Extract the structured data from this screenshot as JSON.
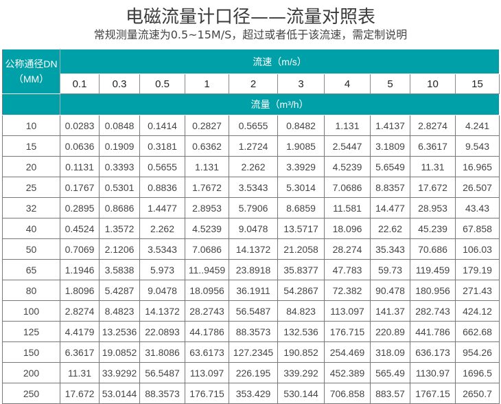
{
  "title": "电磁流量计口径——流量对照表",
  "subtitle": "常规测量流速为0.5~15M/S，超过或者低于该流速，需定制说明",
  "colors": {
    "header_bg": "#00a0a8",
    "header_text": "#ffffff",
    "border": "#777777"
  },
  "table": {
    "dn_header_line1": "公称通径DN",
    "dn_header_line2": "（MM）",
    "velocity_header": "流速（m/s）",
    "flow_header": "流量（m³/h）",
    "velocities": [
      "0.1",
      "0.3",
      "0.5",
      "1",
      "2",
      "3",
      "4",
      "5",
      "10",
      "15"
    ],
    "rows": [
      {
        "dn": "10",
        "values": [
          "0.0283",
          "0.0848",
          "0.1414",
          "0.2827",
          "0.5655",
          "0.8482",
          "1.131",
          "1.4137",
          "2.8274",
          "4.241"
        ]
      },
      {
        "dn": "15",
        "values": [
          "0.0636",
          "0.1909",
          "0.3181",
          "0.6362",
          "1.2724",
          "1.9085",
          "2.5447",
          "3.1809",
          "6.3617",
          "9.543"
        ]
      },
      {
        "dn": "20",
        "values": [
          "0.1131",
          "0.3393",
          "0.5655",
          "1.131",
          "2.262",
          "3.3929",
          "4.5239",
          "5.6549",
          "11.31",
          "16.965"
        ]
      },
      {
        "dn": "25",
        "values": [
          "0.1767",
          "0.5301",
          "0.8836",
          "1.7672",
          "3.5343",
          "5.3014",
          "7.0686",
          "8.8357",
          "17.672",
          "26.507"
        ]
      },
      {
        "dn": "32",
        "values": [
          "0.2895",
          "0.8686",
          "1.4477",
          "2.8953",
          "5.7906",
          "8.6859",
          "11.581",
          "14.477",
          "28.953",
          "43.43"
        ]
      },
      {
        "dn": "40",
        "values": [
          "0.4524",
          "1.3572",
          "2.262",
          "4.5239",
          "9.0478",
          "13.5717",
          "18.096",
          "22.62",
          "45.239",
          "67.858"
        ]
      },
      {
        "dn": "50",
        "values": [
          "0.7069",
          "2.1206",
          "3.5343",
          "7.0686",
          "14.1372",
          "21.2058",
          "28.274",
          "35.343",
          "70.686",
          "106.03"
        ]
      },
      {
        "dn": "65",
        "values": [
          "1.1946",
          "3.5838",
          "5.973",
          "11..9459",
          "23.8918",
          "35.8377",
          "47.783",
          "59.73",
          "119.459",
          "179.19"
        ]
      },
      {
        "dn": "80",
        "values": [
          "1.8096",
          "5.4287",
          "9.0478",
          "18.0956",
          "36.1911",
          "54.2867",
          "72.382",
          "90.478",
          "180.956",
          "271.43"
        ]
      },
      {
        "dn": "100",
        "values": [
          "2.8274",
          "8.4823",
          "14.1372",
          "28.2743",
          "56.5487",
          "84.823",
          "113.097",
          "141.37",
          "282.743",
          "424.12"
        ]
      },
      {
        "dn": "125",
        "values": [
          "4.4179",
          "13.2536",
          "22.0893",
          "44.1786",
          "88.3573",
          "132.536",
          "176.715",
          "220.89",
          "441.786",
          "662.68"
        ]
      },
      {
        "dn": "150",
        "values": [
          "6.3617",
          "19.0852",
          "31.8086",
          "63.6173",
          "127.2345",
          "190.852",
          "254.469",
          "318.09",
          "636.173",
          "954.26"
        ]
      },
      {
        "dn": "200",
        "values": [
          "11.31",
          "33.9292",
          "56.5487",
          "113.097",
          "226.195",
          "339.292",
          "452.389",
          "565.49",
          "1130.97",
          "1696.5"
        ]
      },
      {
        "dn": "250",
        "values": [
          "17.672",
          "53.0144",
          "88.3573",
          "176.715",
          "353.429",
          "530.144",
          "706.858",
          "883.57",
          "1767.15",
          "2650.7"
        ]
      }
    ]
  }
}
